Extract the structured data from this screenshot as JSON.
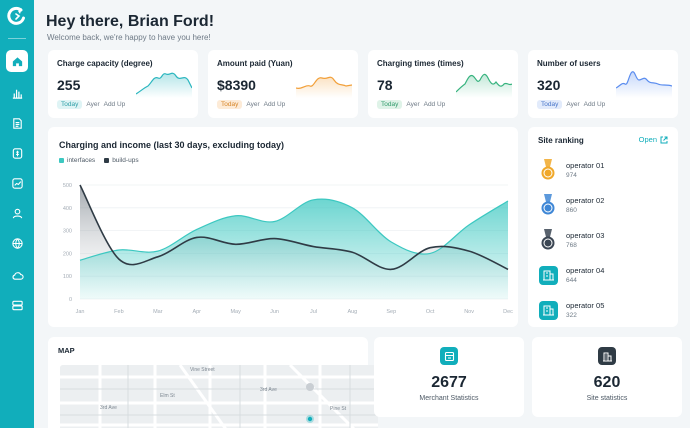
{
  "greeting": {
    "title": "Hey there, Brian Ford!",
    "subtitle": "Welcome back, we're happy to have you here!"
  },
  "sidebar": {
    "items": [
      {
        "icon": "home-icon",
        "active": true
      },
      {
        "icon": "bar-chart-icon",
        "active": false
      },
      {
        "icon": "document-icon",
        "active": false
      },
      {
        "icon": "currency-icon",
        "active": false
      },
      {
        "icon": "trend-icon",
        "active": false
      },
      {
        "icon": "user-icon",
        "active": false
      },
      {
        "icon": "globe-icon",
        "active": false
      },
      {
        "icon": "cloud-icon",
        "active": false
      },
      {
        "icon": "server-icon",
        "active": false
      }
    ]
  },
  "stats": [
    {
      "title": "Charge capacity (degree)",
      "value": "255",
      "pill": "Today",
      "ayer": "Ayer",
      "addup": "Add Up",
      "color": "#2bb6bf",
      "pill_bg": "#dff4f5",
      "pill_fg": "#2b9ea6"
    },
    {
      "title": "Amount paid (Yuan)",
      "value": "$8390",
      "pill": "Today",
      "ayer": "Ayer",
      "addup": "Add Up",
      "color": "#f2a03a",
      "pill_bg": "#fdebd7",
      "pill_fg": "#d68426"
    },
    {
      "title": "Charging times (times)",
      "value": "78",
      "pill": "Today",
      "ayer": "Ayer",
      "addup": "Add Up",
      "color": "#36b37e",
      "pill_bg": "#dff3e8",
      "pill_fg": "#2f9a6a"
    },
    {
      "title": "Number of users",
      "value": "320",
      "pill": "Today",
      "ayer": "Ayer",
      "addup": "Add Up",
      "color": "#5b8def",
      "pill_bg": "#e2ebfb",
      "pill_fg": "#4674c8"
    }
  ],
  "income_chart": {
    "title": "Charging and income (last 30 days, excluding today)",
    "legend": [
      "interfaces",
      "build-ups"
    ],
    "colors": {
      "interfaces": "#3cc8c1",
      "build-ups": "#2f3b45"
    },
    "y_ticks": [
      "500",
      "400",
      "300",
      "200",
      "100",
      "0"
    ],
    "x_ticks": [
      "Jan",
      "Feb",
      "Mar",
      "Apr",
      "May",
      "Jun",
      "Jul",
      "Aug",
      "Sep",
      "Oct",
      "Nov",
      "Dec"
    ]
  },
  "chart_data": {
    "type": "area",
    "title": "Charging and income (last 30 days, excluding today)",
    "categories": [
      "Jan",
      "Feb",
      "Mar",
      "Apr",
      "May",
      "Jun",
      "Jul",
      "Aug",
      "Sep",
      "Oct",
      "Nov",
      "Dec"
    ],
    "series": [
      {
        "name": "interfaces",
        "values": [
          170,
          215,
          210,
          305,
          365,
          340,
          435,
          400,
          250,
          200,
          325,
          430
        ]
      },
      {
        "name": "build-ups",
        "values": [
          500,
          175,
          185,
          270,
          240,
          265,
          230,
          205,
          130,
          225,
          210,
          130
        ]
      }
    ],
    "ylim": [
      0,
      500
    ],
    "xlabel": "",
    "ylabel": "",
    "grid": true,
    "legend_position": "top-left"
  },
  "ranking": {
    "title": "Site ranking",
    "open_label": "Open",
    "items": [
      {
        "name": "operator  01",
        "value": "974",
        "badge": "gold-medal-icon",
        "color": "#f0a82a"
      },
      {
        "name": "operator  02",
        "value": "860",
        "badge": "blue-medal-icon",
        "color": "#3f87d6"
      },
      {
        "name": "operator  03",
        "value": "768",
        "badge": "dark-medal-icon",
        "color": "#3b4653"
      },
      {
        "name": "operator  04",
        "value": "644",
        "badge": "site-icon",
        "color": "#11aebb"
      },
      {
        "name": "operator  05",
        "value": "322",
        "badge": "site-icon",
        "color": "#11aebb"
      }
    ]
  },
  "map": {
    "title": "MAP",
    "streets": [
      "Vine Street",
      "3rd Ave",
      "3rd Ave",
      "Elm St",
      "Pine St"
    ]
  },
  "merchant": {
    "value": "2677",
    "label": "Merchant Statistics",
    "icon": "store-icon",
    "color": "#11aebb"
  },
  "sites": {
    "value": "620",
    "label": "Site statistics",
    "icon": "building-icon",
    "color": "#2f3b45"
  }
}
